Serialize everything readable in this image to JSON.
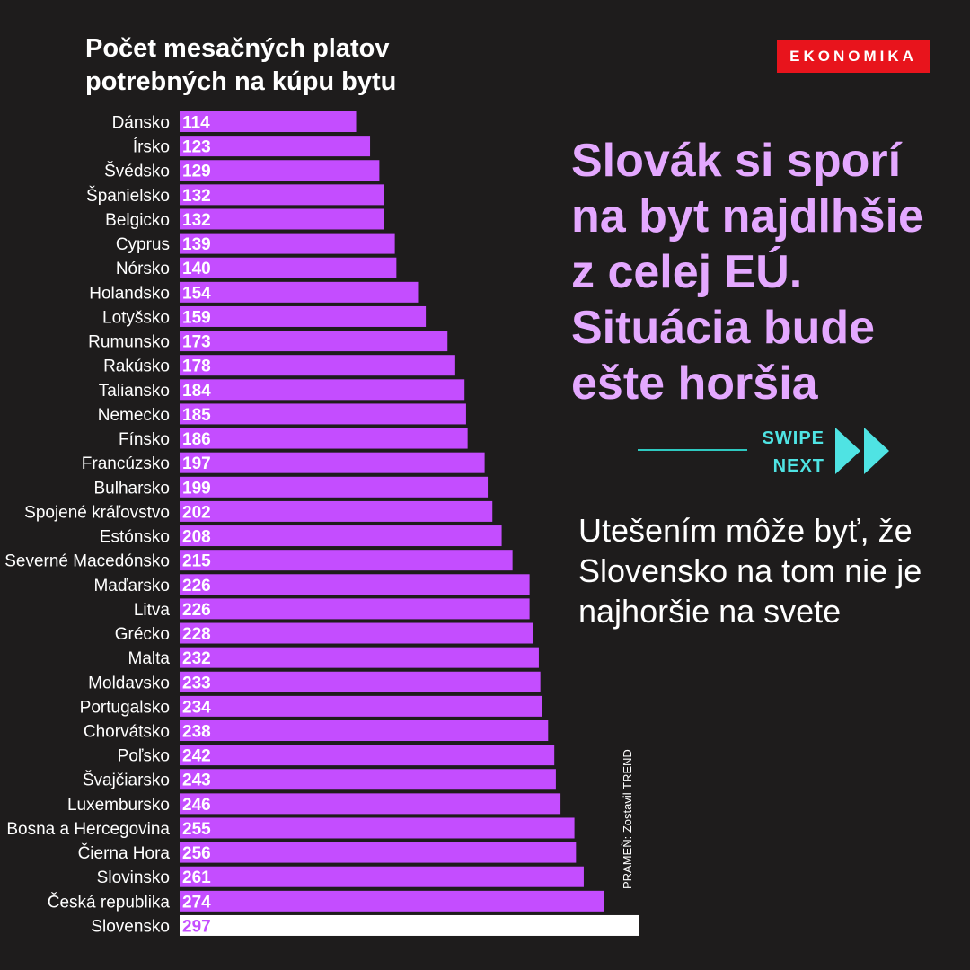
{
  "brand": {
    "label": "EKONOMIKA",
    "color": "#e8141c"
  },
  "headline": {
    "text": "Slovák si sporí na byt najdlhšie z celej EÚ. Situácia bude ešte horšia",
    "color": "#e4a8ff"
  },
  "swipe": {
    "line1": "SWIPE",
    "line2": "NEXT",
    "color": "#4fe3e3",
    "icon": "double-chevron-right-icon"
  },
  "subtext": "Utešením môže byť, že Slovensko na tom nie je najhoršie na svete",
  "source": "PRAMEŇ: Zostavil TREND",
  "colors": {
    "background": "#1e1c1c",
    "bar": "#c44dff",
    "highlight_bar": "#ffffff",
    "highlight_text": "#c44dff"
  },
  "chart_data": {
    "type": "bar",
    "orientation": "horizontal",
    "title": "Počet mesačných platov potrebných na kúpu bytu",
    "categories": [
      "Dánsko",
      "Írsko",
      "Švédsko",
      "Španielsko",
      "Belgicko",
      "Cyprus",
      "Nórsko",
      "Holandsko",
      "Lotyšsko",
      "Rumunsko",
      "Rakúsko",
      "Taliansko",
      "Nemecko",
      "Fínsko",
      "Francúzsko",
      "Bulharsko",
      "Spojené kráľovstvo",
      "Estónsko",
      "Severné Macedónsko",
      "Maďarsko",
      "Litva",
      "Grécko",
      "Malta",
      "Moldavsko",
      "Portugalsko",
      "Chorvátsko",
      "Poľsko",
      "Švajčiarsko",
      "Luxembursko",
      "Bosna a Hercegovina",
      "Čierna Hora",
      "Slovinsko",
      "Česká republika",
      "Slovensko"
    ],
    "values": [
      114,
      123,
      129,
      132,
      132,
      139,
      140,
      154,
      159,
      173,
      178,
      184,
      185,
      186,
      197,
      199,
      202,
      208,
      215,
      226,
      226,
      228,
      232,
      233,
      234,
      238,
      242,
      243,
      246,
      255,
      256,
      261,
      274,
      297
    ],
    "highlight": "Slovensko",
    "data_labels": "inside-left",
    "grid": false,
    "legend": "none"
  }
}
